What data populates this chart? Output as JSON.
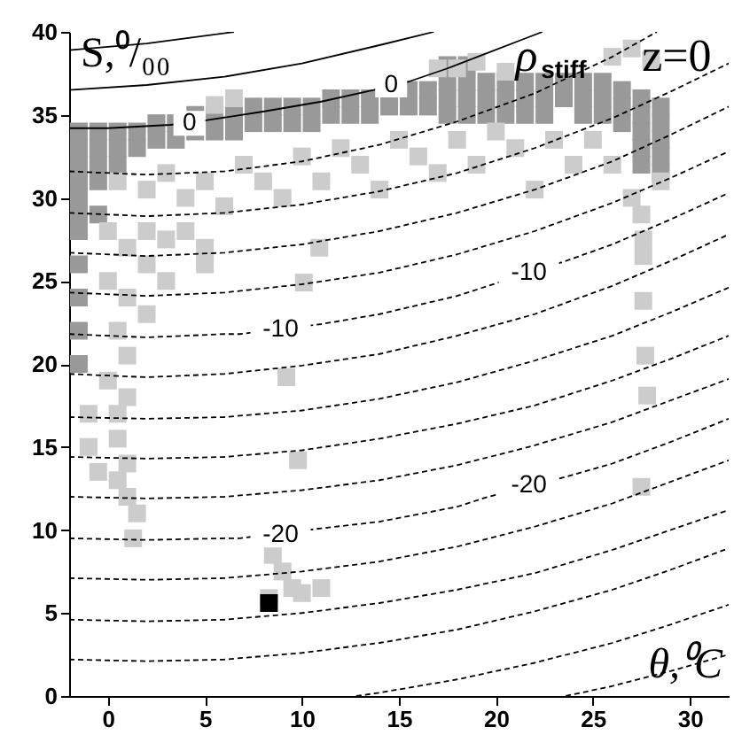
{
  "chart_data": {
    "type": "scatter",
    "xlabel": "θ,⁰C",
    "ylabel": "S,⁰/₀₀",
    "xlim": [
      -2,
      32
    ],
    "ylim": [
      0,
      40
    ],
    "xticks": [
      0,
      5,
      10,
      15,
      20,
      25,
      30
    ],
    "yticks": [
      0,
      5,
      10,
      15,
      20,
      25,
      30,
      35,
      40
    ],
    "annotations": [
      {
        "text": "0",
        "x": 4.2,
        "y": 34.5
      },
      {
        "text": "0",
        "x": 14.6,
        "y": 36.8
      },
      {
        "text": "-10",
        "x": 8.9,
        "y": 22.1
      },
      {
        "text": "-10",
        "x": 21.7,
        "y": 25.5
      },
      {
        "text": "-20",
        "x": 8.9,
        "y": 9.7
      },
      {
        "text": "-20",
        "x": 21.7,
        "y": 12.7
      },
      "ρ$_{stiff}$",
      "z=0"
    ],
    "series": [
      {
        "marker": "square",
        "color": "#999999",
        "x": [
          -1.5,
          -1.5,
          -1.5,
          -1.5,
          -1.5,
          -1.5,
          -1.5,
          -1.5,
          -1.5,
          -1.5,
          -1.5,
          -0.5,
          -0.5,
          -0.5,
          -0.5,
          -0.5,
          0.5,
          0.5,
          0.5,
          1.5,
          1.5,
          2.5,
          2.5,
          3.5,
          3.5,
          4.5,
          4.5,
          5.5,
          5.5,
          6.5,
          6.5,
          7.5,
          7.5,
          8.5,
          8.5,
          9.5,
          9.5,
          10.5,
          10.5,
          11.5,
          11.5,
          12.5,
          12.5,
          13.5,
          13.5,
          14.5,
          14.5,
          15.5,
          15.5,
          16.5,
          16.5,
          17.5,
          17.5,
          17.5,
          17.5,
          18.5,
          18.5,
          18.5,
          18.5,
          19.5,
          19.5,
          19.5,
          20.5,
          20.5,
          20.5,
          21.5,
          21.5,
          21.5,
          22.5,
          22.5,
          22.5,
          23.5,
          23.5,
          24.5,
          24.5,
          24.5,
          25.5,
          25.5,
          25.5,
          26.5,
          26.5,
          26.5,
          27.5,
          27.5,
          27.5,
          27.5,
          27.5,
          28.5,
          28.5,
          28.5,
          28.5,
          28.5
        ],
        "values": [
          34,
          33,
          32,
          31,
          30,
          29,
          28,
          26,
          24,
          22,
          20,
          34,
          33,
          32,
          31,
          29,
          34,
          33,
          32,
          34,
          33,
          34.5,
          33.5,
          34.5,
          33.5,
          35,
          34,
          35,
          34,
          35,
          34,
          35.5,
          34.5,
          35.5,
          34.5,
          35.5,
          34.5,
          35.5,
          34.5,
          36,
          35,
          36,
          35,
          36,
          35,
          36,
          35.5,
          36.5,
          35.5,
          36.5,
          35.5,
          38,
          37,
          36,
          35,
          38,
          37,
          36,
          35,
          37,
          36,
          35,
          37,
          36,
          35,
          37,
          36,
          35,
          37,
          36,
          35,
          37,
          36,
          37,
          36,
          35,
          37,
          36,
          35,
          36.5,
          35.5,
          34.5,
          36,
          35,
          34,
          33,
          32,
          35.5,
          34.5,
          33.5,
          32.5,
          31.5
        ]
      },
      {
        "marker": "square",
        "color": "#cccccc",
        "x": [
          0.5,
          2,
          3,
          4,
          5,
          6,
          7,
          8,
          9,
          10,
          11,
          12,
          13,
          14,
          15,
          16,
          17,
          18,
          19,
          20,
          21,
          22,
          23,
          24,
          25,
          26,
          27,
          27.5,
          27.6,
          27.6,
          27.6,
          27.7,
          27.8,
          27.5,
          0,
          1,
          2,
          3,
          4,
          5,
          5,
          0,
          1,
          0.5,
          1,
          0,
          1,
          0.5,
          0.5,
          1,
          0.5,
          1,
          1.5,
          1.3,
          2,
          3,
          2,
          -1,
          -1,
          -0.5,
          10.1,
          9.2,
          10.9,
          9.8,
          8.5,
          9,
          9.5,
          10,
          11,
          8.3,
          17,
          18,
          19,
          26,
          27,
          28,
          5.5,
          6.5,
          28.5,
          20.5
        ],
        "values": [
          31,
          30.5,
          31.5,
          30,
          31,
          29.5,
          32,
          31,
          30,
          32.5,
          31,
          33,
          32,
          30.5,
          33.5,
          32.5,
          31.5,
          33.5,
          32,
          34,
          33,
          30.5,
          33.5,
          32,
          33.5,
          32,
          30,
          29,
          27.5,
          26.5,
          23.8,
          20.5,
          18.1,
          12.6,
          28,
          27,
          28,
          27.5,
          28,
          27,
          26,
          25,
          24,
          22,
          20.5,
          19,
          18,
          17,
          15.5,
          14,
          13,
          12,
          11,
          9.5,
          26,
          25,
          23,
          17,
          15,
          13.5,
          24.9,
          19.2,
          27,
          14.2,
          8.5,
          7.5,
          6.5,
          6.2,
          6.5,
          5.9,
          37.8,
          37.8,
          38.2,
          38.5,
          39,
          38.3,
          35.6,
          36,
          31,
          37.6
        ]
      },
      {
        "marker": "square",
        "color": "#000000",
        "x": [
          8.3
        ],
        "values": [
          5.6
        ]
      },
      {
        "type": "line",
        "line_style": "solid",
        "color": "#000000",
        "x": [
          -2,
          2,
          6.5
        ],
        "values": [
          38.9,
          39.3,
          40
        ]
      },
      {
        "type": "line",
        "line_style": "solid",
        "color": "#000000",
        "x": [
          -2,
          2,
          6,
          10,
          14,
          16.8
        ],
        "values": [
          36.5,
          36.8,
          37.3,
          38.1,
          39.2,
          40
        ]
      },
      {
        "type": "line",
        "line_style": "solid",
        "color": "#000000",
        "x": [
          -2,
          0,
          3.2,
          4.2,
          5.2,
          8,
          11,
          13.7,
          14.6,
          15.5,
          17.5,
          19.5,
          21.5,
          22.4
        ],
        "values": [
          34.2,
          34.2,
          34.4,
          34.5,
          34.7,
          35.2,
          35.8,
          36.5,
          36.8,
          37.0,
          37.8,
          38.7,
          39.6,
          40
        ]
      },
      {
        "type": "line",
        "line_style": "dashed",
        "color": "#000000",
        "x": [
          -2,
          2,
          6,
          10,
          14,
          18,
          22,
          26,
          28.3
        ],
        "values": [
          31.6,
          31.4,
          31.6,
          32.2,
          33.2,
          34.6,
          36.3,
          38.5,
          40
        ]
      },
      {
        "type": "line",
        "line_style": "dashed",
        "color": "#000000",
        "x": [
          -2,
          2,
          6,
          10,
          14,
          18,
          22,
          26,
          29,
          32
        ],
        "values": [
          29.1,
          28.9,
          29.1,
          29.6,
          30.4,
          31.5,
          33.0,
          34.8,
          36.4,
          38.1
        ]
      },
      {
        "type": "line",
        "line_style": "dashed",
        "color": "#000000",
        "x": [
          -2,
          2,
          6,
          10,
          14,
          18,
          22,
          26,
          29,
          32
        ],
        "values": [
          26.7,
          26.5,
          26.7,
          27.2,
          28.0,
          29.1,
          30.5,
          32.2,
          33.8,
          35.5
        ]
      },
      {
        "type": "line",
        "line_style": "dashed",
        "color": "#000000",
        "x": [
          -2,
          2,
          6,
          10,
          14,
          18,
          22,
          26,
          29,
          32
        ],
        "values": [
          24.3,
          24.1,
          24.3,
          24.8,
          25.5,
          26.6,
          28.0,
          29.7,
          31.2,
          32.8
        ]
      },
      {
        "type": "line",
        "line_style": "dashed",
        "color": "#000000",
        "x": [
          -2,
          2,
          6,
          6.8,
          11,
          14,
          18,
          19.6,
          23.6,
          26,
          29,
          32
        ],
        "values": [
          21.8,
          21.6,
          21.8,
          21.8,
          22.4,
          23.0,
          24.1,
          24.7,
          26.2,
          27.2,
          28.7,
          30.3
        ]
      },
      {
        "type": "line",
        "line_style": "dashed",
        "color": "#000000",
        "x": [
          -2,
          2,
          6,
          10,
          14,
          18,
          22,
          26,
          29,
          32
        ],
        "values": [
          19.4,
          19.2,
          19.4,
          19.9,
          20.6,
          21.7,
          23.0,
          24.7,
          26.2,
          27.8
        ]
      },
      {
        "type": "line",
        "line_style": "dashed",
        "color": "#000000",
        "x": [
          -2,
          2,
          6,
          10,
          14,
          18,
          22,
          26,
          29,
          32
        ],
        "values": [
          16.8,
          16.7,
          16.8,
          17.2,
          17.9,
          18.9,
          20.2,
          21.7,
          23.1,
          24.6
        ]
      },
      {
        "type": "line",
        "line_style": "dashed",
        "color": "#000000",
        "x": [
          -2,
          2,
          6,
          10,
          14,
          18,
          22,
          26,
          29,
          32
        ],
        "values": [
          14.4,
          14.3,
          14.4,
          14.8,
          15.5,
          16.4,
          17.5,
          19.0,
          20.3,
          21.7
        ]
      },
      {
        "type": "line",
        "line_style": "dashed",
        "color": "#000000",
        "x": [
          -2,
          2,
          6,
          10,
          14,
          18,
          22,
          26,
          29,
          32
        ],
        "values": [
          12.0,
          11.9,
          12.0,
          12.4,
          13.0,
          13.9,
          15.1,
          16.5,
          17.8,
          19.1
        ]
      },
      {
        "type": "line",
        "line_style": "dashed",
        "color": "#000000",
        "x": [
          -2,
          2,
          6,
          6.8,
          11,
          14,
          18,
          19.6,
          23.6,
          26,
          29,
          32
        ],
        "values": [
          9.5,
          9.4,
          9.5,
          9.5,
          10.1,
          10.5,
          11.4,
          12.0,
          13.2,
          14.0,
          15.3,
          16.7
        ]
      },
      {
        "type": "line",
        "line_style": "dashed",
        "color": "#000000",
        "x": [
          -2,
          2,
          6,
          10,
          14,
          18,
          22,
          26,
          29,
          32
        ],
        "values": [
          7.1,
          7.0,
          7.1,
          7.5,
          8.1,
          9.0,
          10.2,
          11.6,
          12.9,
          14.2
        ]
      },
      {
        "type": "line",
        "line_style": "dashed",
        "color": "#000000",
        "x": [
          -2,
          2,
          6,
          10,
          14,
          18,
          22,
          26,
          29,
          32
        ],
        "values": [
          4.6,
          4.5,
          4.6,
          5.0,
          5.6,
          6.4,
          7.4,
          8.8,
          10.0,
          11.2
        ]
      },
      {
        "type": "line",
        "line_style": "dashed",
        "color": "#000000",
        "x": [
          -2,
          2,
          6,
          10,
          14,
          18,
          22,
          26,
          29,
          32
        ],
        "values": [
          2.2,
          2.1,
          2.2,
          2.6,
          3.2,
          4.0,
          5.1,
          6.4,
          7.6,
          8.9
        ]
      },
      {
        "type": "line",
        "line_style": "dashed",
        "color": "#000000",
        "x": [
          12.8,
          14,
          18,
          22,
          26,
          29,
          32
        ],
        "values": [
          0,
          0.2,
          1.0,
          2.0,
          3.2,
          4.3,
          5.5
        ]
      },
      {
        "type": "line",
        "line_style": "dashed",
        "color": "#000000",
        "x": [
          23.6,
          26,
          29,
          32
        ],
        "values": [
          0,
          0.6,
          1.5,
          2.5
        ]
      }
    ]
  }
}
